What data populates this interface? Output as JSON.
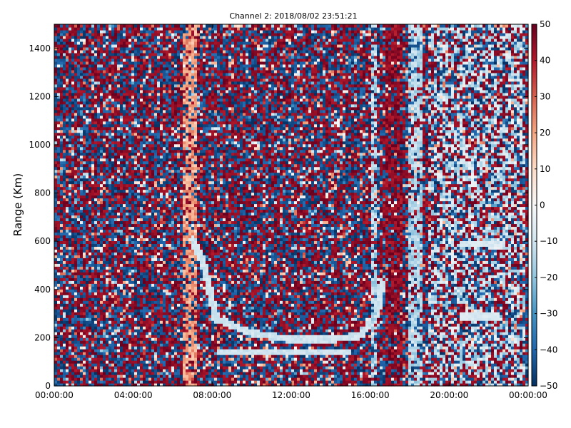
{
  "chart_data": {
    "type": "heatmap",
    "title": "Channel 2: 2018/08/02 23:51:21",
    "xlabel": "",
    "ylabel": "Range (Km)",
    "x_ticks": [
      "00:00:00",
      "04:00:00",
      "08:00:00",
      "12:00:00",
      "16:00:00",
      "20:00:00",
      "00:00:00"
    ],
    "x_range_hours": [
      0,
      24
    ],
    "y_ticks": [
      0,
      200,
      400,
      600,
      800,
      1000,
      1200,
      1400
    ],
    "y_range": [
      0,
      1500
    ],
    "colorbar": {
      "min": -50,
      "max": 50,
      "ticks": [
        50,
        40,
        30,
        20,
        10,
        0,
        -10,
        -20,
        -30,
        -40,
        -50
      ],
      "colormap": "RdBu_r",
      "stops": [
        "#053061",
        "#2166ac",
        "#4393c3",
        "#92c5de",
        "#d1e5f0",
        "#f7f7f7",
        "#fddbc7",
        "#f4a582",
        "#d6604d",
        "#b2182b",
        "#67001f"
      ]
    },
    "features": [
      {
        "kind": "vertical_band",
        "x_hours": [
          6.5,
          7.2
        ],
        "value": 20
      },
      {
        "kind": "curve",
        "points": [
          [
            7.0,
            610
          ],
          [
            7.6,
            500
          ],
          [
            8.2,
            280
          ],
          [
            10.0,
            220
          ],
          [
            12.0,
            195
          ],
          [
            14.0,
            195
          ],
          [
            15.5,
            210
          ],
          [
            16.3,
            290
          ],
          [
            16.6,
            430
          ]
        ],
        "value": -10
      },
      {
        "kind": "segment",
        "x_hours": [
          8.2,
          15.0
        ],
        "y": 140,
        "value": -10
      },
      {
        "kind": "vertical_band",
        "x_hours": [
          16.0,
          16.3
        ],
        "value": -15
      },
      {
        "kind": "vertical_band",
        "x_hours": [
          16.8,
          17.6
        ],
        "value": 45
      },
      {
        "kind": "vertical_band",
        "x_hours": [
          17.9,
          18.6
        ],
        "value": -15
      },
      {
        "kind": "region",
        "x_hours": [
          19.0,
          23.8
        ],
        "y_range": [
          0,
          1500
        ],
        "value": -12
      },
      {
        "kind": "segment",
        "x_hours": [
          20.5,
          22.6
        ],
        "y": 290,
        "value": -8
      },
      {
        "kind": "segment",
        "x_hours": [
          20.6,
          22.8
        ],
        "y": 590,
        "value": -8
      }
    ]
  }
}
